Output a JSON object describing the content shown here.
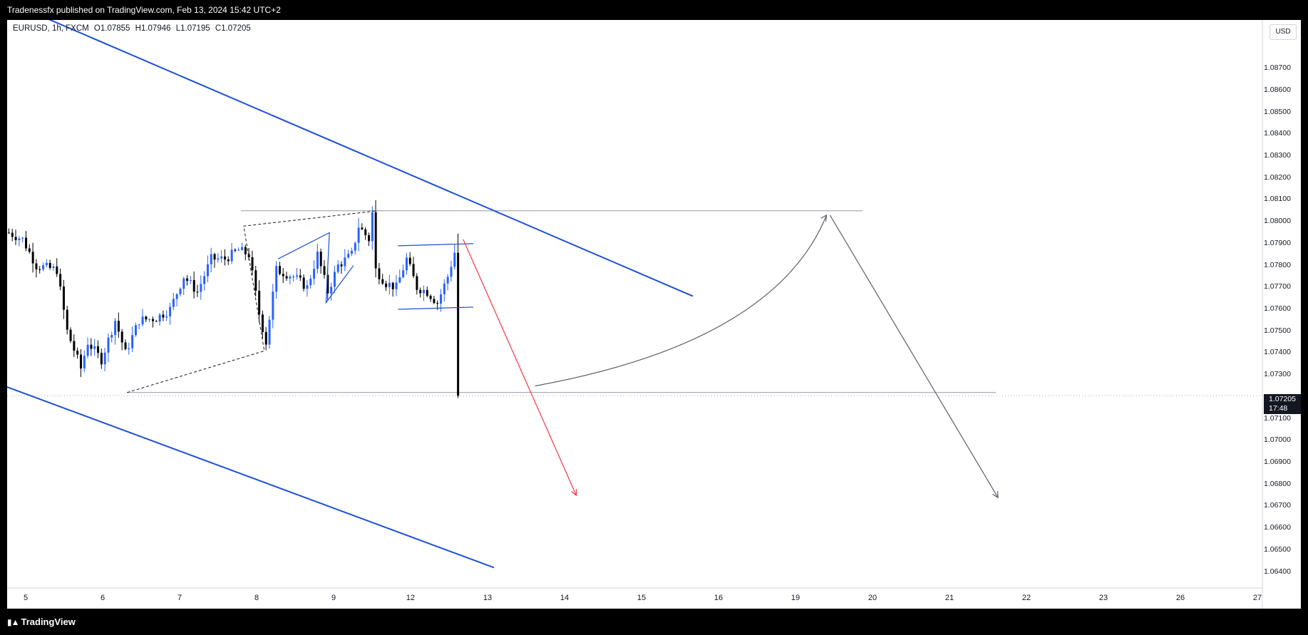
{
  "header": {
    "publish_text": "Tradenessfx published on TradingView.com, Feb 13, 2024 15:42 UTC+2"
  },
  "legend": {
    "symbol": "EURUSD, 1h, FXCM",
    "open": "O1.07855",
    "high": "H1.07946",
    "low": "L1.07195",
    "close": "C1.07205"
  },
  "currency": "USD",
  "last_price": {
    "value": "1.07205",
    "countdown": "17:48"
  },
  "footer": {
    "brand": "TradingView"
  },
  "colors": {
    "bull": "#2962ff",
    "bear": "#000000",
    "channel": "#1c4fd8",
    "projection": "#5d606b",
    "bearish_arrow": "#f23645"
  },
  "chart_data": {
    "type": "candlestick",
    "symbol": "EURUSD",
    "timeframe": "1h",
    "ylim": [
      1.0635,
      1.0885
    ],
    "y_ticks": [
      "1.08700",
      "1.08600",
      "1.08500",
      "1.08400",
      "1.08300",
      "1.08200",
      "1.08100",
      "1.08000",
      "1.07900",
      "1.07800",
      "1.07700",
      "1.07600",
      "1.07500",
      "1.07400",
      "1.07300",
      "1.07100",
      "1.07000",
      "1.06900",
      "1.06800",
      "1.06700",
      "1.06600",
      "1.06500",
      "1.06400"
    ],
    "x_ticks": [
      "5",
      "6",
      "7",
      "8",
      "9",
      "12",
      "13",
      "14",
      "15",
      "16",
      "19",
      "20",
      "21",
      "22",
      "23",
      "26",
      "27"
    ],
    "last_close": 1.07205,
    "price_waypoints": [
      {
        "i": 0,
        "p": 1.0795
      },
      {
        "i": 4,
        "p": 1.0792
      },
      {
        "i": 8,
        "p": 1.078
      },
      {
        "i": 14,
        "p": 1.0778
      },
      {
        "i": 17,
        "p": 1.075
      },
      {
        "i": 21,
        "p": 1.0733
      },
      {
        "i": 23,
        "p": 1.0745
      },
      {
        "i": 27,
        "p": 1.0737
      },
      {
        "i": 31,
        "p": 1.0755
      },
      {
        "i": 34,
        "p": 1.074
      },
      {
        "i": 38,
        "p": 1.0755
      },
      {
        "i": 43,
        "p": 1.0756
      },
      {
        "i": 47,
        "p": 1.076
      },
      {
        "i": 51,
        "p": 1.0775
      },
      {
        "i": 55,
        "p": 1.0768
      },
      {
        "i": 59,
        "p": 1.0783
      },
      {
        "i": 63,
        "p": 1.0783
      },
      {
        "i": 67,
        "p": 1.0787
      },
      {
        "i": 70,
        "p": 1.0785
      },
      {
        "i": 73,
        "p": 1.0758
      },
      {
        "i": 75,
        "p": 1.0745
      },
      {
        "i": 78,
        "p": 1.0778
      },
      {
        "i": 83,
        "p": 1.0775
      },
      {
        "i": 87,
        "p": 1.077
      },
      {
        "i": 90,
        "p": 1.0785
      },
      {
        "i": 93,
        "p": 1.0768
      },
      {
        "i": 96,
        "p": 1.078
      },
      {
        "i": 100,
        "p": 1.0785
      },
      {
        "i": 102,
        "p": 1.0798
      },
      {
        "i": 105,
        "p": 1.0792
      },
      {
        "i": 106,
        "p": 1.0804
      },
      {
        "i": 107,
        "p": 1.0778
      },
      {
        "i": 110,
        "p": 1.0772
      },
      {
        "i": 113,
        "p": 1.077
      },
      {
        "i": 116,
        "p": 1.0783
      },
      {
        "i": 119,
        "p": 1.077
      },
      {
        "i": 122,
        "p": 1.0768
      },
      {
        "i": 125,
        "p": 1.0763
      },
      {
        "i": 128,
        "p": 1.0775
      },
      {
        "i": 130,
        "p": 1.0786
      },
      {
        "i": 131,
        "p": 1.07205
      }
    ],
    "price_levels": {
      "resistance": 1.0805,
      "support": 1.0722
    },
    "annotations": [
      {
        "name": "upper-channel-line",
        "from": {
          "i": -5,
          "p": 1.0904
        },
        "to": {
          "i": 200,
          "p": 1.0766
        }
      },
      {
        "name": "lower-channel-line",
        "from": {
          "i": -6,
          "p": 1.0728
        },
        "to": {
          "i": 142,
          "p": 1.0642
        }
      },
      {
        "name": "bull-flag-top",
        "from": {
          "i": 114,
          "p": 1.0789
        },
        "to": {
          "i": 136,
          "p": 1.079
        }
      },
      {
        "name": "bull-flag-bottom",
        "from": {
          "i": 114,
          "p": 1.076
        },
        "to": {
          "i": 136,
          "p": 1.0761
        }
      }
    ]
  }
}
